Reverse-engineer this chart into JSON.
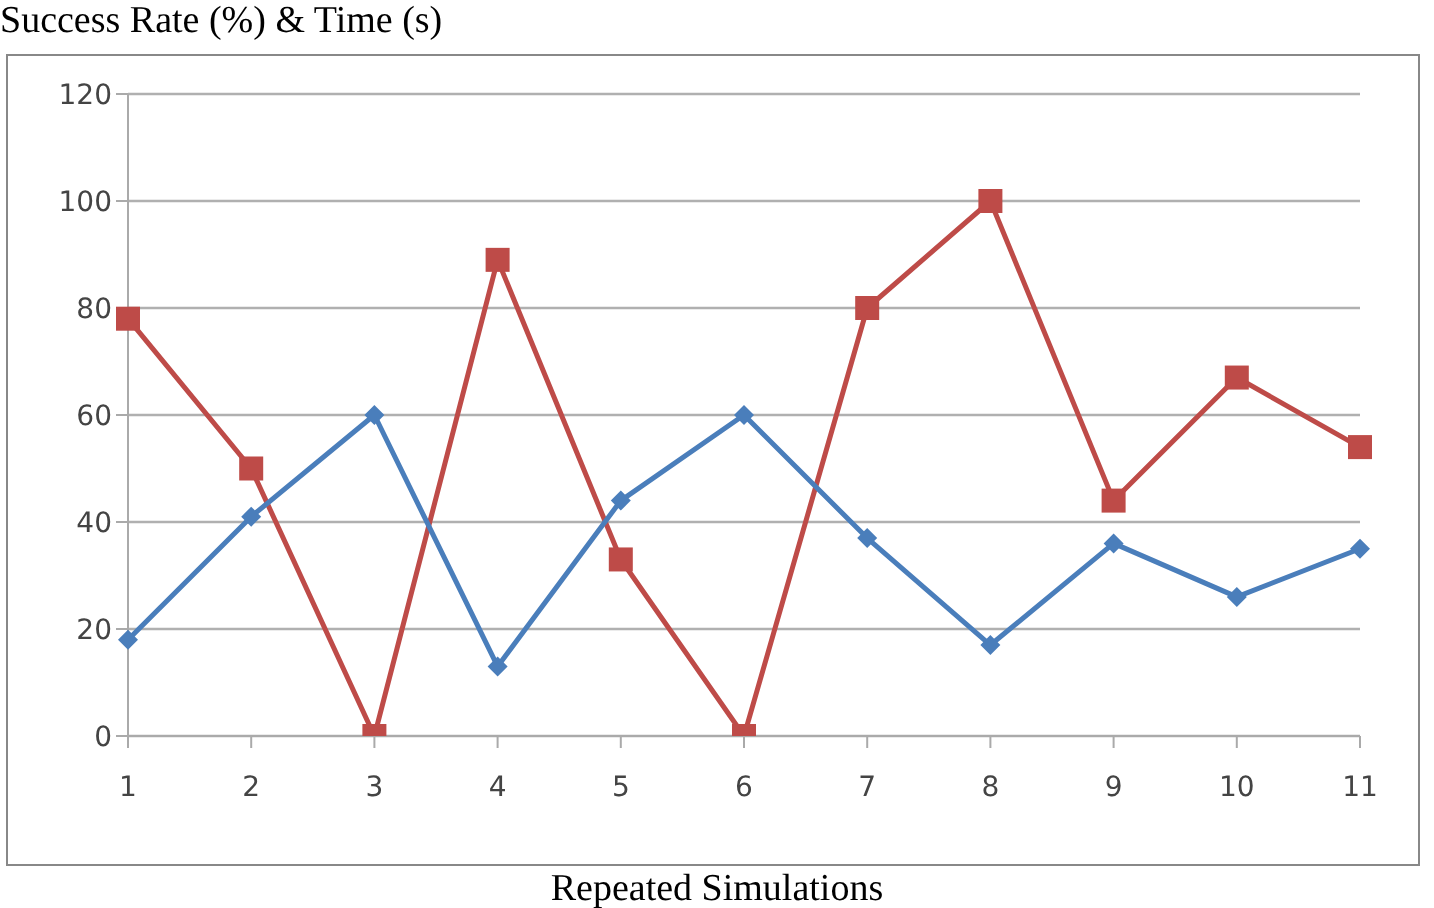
{
  "chart_data": {
    "type": "line",
    "ylabel": "Success Rate (%) & Time (s)",
    "xlabel": "Repeated Simulations",
    "categories": [
      "1",
      "2",
      "3",
      "4",
      "5",
      "6",
      "7",
      "8",
      "9",
      "10",
      "11"
    ],
    "series": [
      {
        "color": "#be4b48",
        "marker": "square",
        "values": [
          78,
          50,
          0,
          89,
          33,
          0,
          80,
          100,
          44,
          67,
          54
        ]
      },
      {
        "color": "#4a7ebb",
        "marker": "diamond",
        "values": [
          18,
          41,
          60,
          13,
          44,
          60,
          37,
          17,
          36,
          26,
          35
        ]
      }
    ],
    "ylim": [
      0,
      120
    ],
    "yticks": [
      0,
      20,
      40,
      60,
      80,
      100,
      120
    ],
    "grid": "y",
    "legend": false,
    "line_style": "solid"
  }
}
